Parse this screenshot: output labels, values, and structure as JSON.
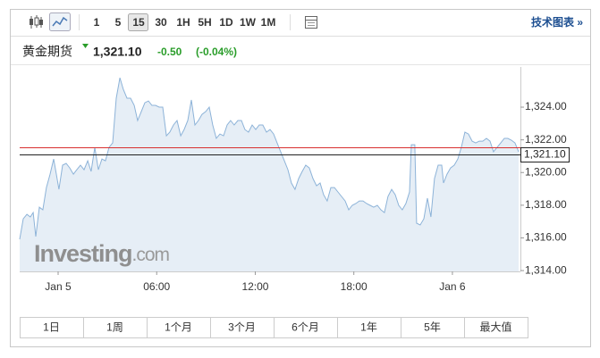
{
  "toolbar": {
    "intervals": [
      "1",
      "5",
      "15",
      "30",
      "1H",
      "5H",
      "1D",
      "1W",
      "1M"
    ],
    "selected_interval": 2,
    "technical_link": "技术图表 »"
  },
  "header": {
    "name": "黄金期货",
    "price": "1,321.10",
    "change": "-0.50",
    "change_pct": "(-0.04%)",
    "change_color": "#2a9d2a"
  },
  "chart_data": {
    "type": "area",
    "color": "#8db3d8",
    "fill": "#e3ecf5",
    "x": [
      -2.34,
      -2.12,
      -1.9,
      -1.69,
      -1.52,
      -1.36,
      -1.14,
      -0.93,
      -0.71,
      -0.49,
      -0.27,
      -0.11,
      0.05,
      0.27,
      0.49,
      0.71,
      0.93,
      1.14,
      1.36,
      1.58,
      1.8,
      2.01,
      2.23,
      2.45,
      2.67,
      2.88,
      3.1,
      3.32,
      3.54,
      3.76,
      3.97,
      4.19,
      4.41,
      4.63,
      4.84,
      5.06,
      5.28,
      5.5,
      5.71,
      5.93,
      6.15,
      6.37,
      6.59,
      6.8,
      7.02,
      7.24,
      7.46,
      7.67,
      7.89,
      8.11,
      8.33,
      8.54,
      8.76,
      8.98,
      9.2,
      9.41,
      9.63,
      9.85,
      10.07,
      10.29,
      10.5,
      10.72,
      10.94,
      11.16,
      11.37,
      11.59,
      11.81,
      12.03,
      12.24,
      12.46,
      12.68,
      12.9,
      13.12,
      13.33,
      13.55,
      13.77,
      13.99,
      14.2,
      14.42,
      14.64,
      14.86,
      15.07,
      15.29,
      15.51,
      15.73,
      15.95,
      16.16,
      16.38,
      16.6,
      16.82,
      17.03,
      17.25,
      17.47,
      17.69,
      17.9,
      18.12,
      18.34,
      18.56,
      18.78,
      18.99,
      19.21,
      19.43,
      19.65,
      19.86,
      20.08,
      20.3,
      20.52,
      20.73,
      20.95,
      21.17,
      21.39,
      21.5,
      21.71,
      21.82,
      22.04,
      22.26,
      22.48,
      22.69,
      22.91,
      23.13,
      23.35,
      23.46,
      23.67,
      23.89,
      24.11,
      24.33,
      24.54,
      24.76,
      24.98,
      25.2,
      25.42,
      25.63,
      25.85,
      26.07,
      26.29,
      26.5,
      26.72,
      26.94,
      27.16,
      27.37,
      27.59,
      27.81,
      28.03
    ],
    "values": [
      1315.91,
      1317.17,
      1317.44,
      1317.28,
      1317.55,
      1316.08,
      1317.88,
      1317.72,
      1319.08,
      1319.9,
      1320.83,
      1319.9,
      1318.97,
      1320.45,
      1320.56,
      1320.28,
      1319.9,
      1320.17,
      1320.45,
      1320.17,
      1320.72,
      1320.07,
      1321.54,
      1320.17,
      1320.83,
      1320.72,
      1321.54,
      1321.81,
      1324.55,
      1325.8,
      1325.09,
      1324.55,
      1324.55,
      1324.11,
      1323.18,
      1323.73,
      1324.27,
      1324.38,
      1324.11,
      1324.11,
      1324.0,
      1324.0,
      1322.25,
      1322.47,
      1322.91,
      1323.18,
      1322.25,
      1322.63,
      1323.18,
      1324.44,
      1322.91,
      1323.18,
      1323.56,
      1323.73,
      1324.0,
      1322.91,
      1322.09,
      1322.36,
      1322.25,
      1322.91,
      1323.18,
      1322.91,
      1323.18,
      1323.18,
      1322.63,
      1322.47,
      1322.91,
      1322.63,
      1322.91,
      1322.91,
      1322.47,
      1322.63,
      1322.36,
      1321.81,
      1321.27,
      1320.72,
      1320.17,
      1319.36,
      1318.97,
      1319.63,
      1320.07,
      1320.45,
      1320.28,
      1319.63,
      1319.19,
      1319.36,
      1318.64,
      1318.26,
      1319.08,
      1319.08,
      1318.81,
      1318.54,
      1318.26,
      1317.72,
      1317.99,
      1318.1,
      1318.26,
      1318.26,
      1318.1,
      1317.99,
      1317.88,
      1317.99,
      1317.72,
      1317.55,
      1318.54,
      1318.97,
      1318.64,
      1317.99,
      1317.72,
      1318.1,
      1318.81,
      1321.7,
      1321.7,
      1316.9,
      1316.79,
      1317.17,
      1318.43,
      1317.28,
      1319.63,
      1320.45,
      1320.45,
      1319.36,
      1319.9,
      1320.28,
      1320.45,
      1320.83,
      1321.54,
      1322.47,
      1322.36,
      1321.92,
      1321.81,
      1321.92,
      1321.92,
      1322.09,
      1321.92,
      1321.27,
      1321.54,
      1321.81,
      1322.09,
      1322.09,
      1321.98,
      1321.81,
      1321.27
    ],
    "xlim": [
      -2.34,
      28.14
    ],
    "ylim": [
      1313.95,
      1326.46
    ],
    "xticks": [
      {
        "value": 0,
        "label": "Jan 5"
      },
      {
        "value": 6,
        "label": "06:00"
      },
      {
        "value": 12,
        "label": "12:00"
      },
      {
        "value": 18,
        "label": "18:00"
      },
      {
        "value": 24,
        "label": "Jan 6"
      }
    ],
    "yticks": [
      {
        "value": 1314,
        "label": "1,314.00"
      },
      {
        "value": 1316,
        "label": "1,316.00"
      },
      {
        "value": 1318,
        "label": "1,318.00"
      },
      {
        "value": 1320,
        "label": "1,320.00"
      },
      {
        "value": 1322,
        "label": "1,322.00"
      },
      {
        "value": 1324,
        "label": "1,324.00"
      }
    ],
    "reference_lines": [
      {
        "value": 1321.54,
        "color": "#d83030"
      },
      {
        "value": 1321.1,
        "color": "#222222",
        "label": "1,321.10"
      }
    ],
    "watermark": [
      "Investing",
      ".com"
    ]
  },
  "range_buttons": [
    "1日",
    "1周",
    "1个月",
    "3个月",
    "6个月",
    "1年",
    "5年",
    "最大值"
  ]
}
